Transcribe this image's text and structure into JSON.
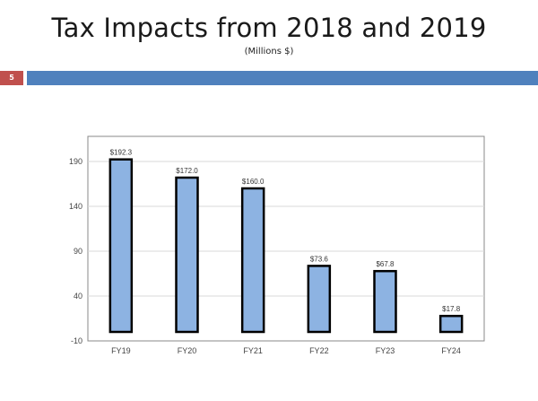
{
  "slide": {
    "title": "Tax Impacts from 2018 and 2019",
    "subtitle": "(Millions $)",
    "number": "5",
    "colors": {
      "title_bar": "#4f81bd",
      "number_box": "#c0504d"
    }
  },
  "chart_data": {
    "type": "bar",
    "categories": [
      "FY19",
      "FY20",
      "FY21",
      "FY22",
      "FY23",
      "FY24"
    ],
    "values": [
      192.3,
      172.0,
      160.0,
      73.6,
      67.8,
      17.8
    ],
    "data_labels": [
      "$192.3",
      "$172.0",
      "$160.0",
      "$73.6",
      "$67.8",
      "$17.8"
    ],
    "title": "",
    "xlabel": "",
    "ylabel": "",
    "ylim": [
      -10,
      210
    ],
    "yticks": [
      -10,
      40,
      90,
      140,
      190
    ],
    "grid": true,
    "bar_color": "#8db3e2",
    "bar_edge_color": "#000000"
  }
}
